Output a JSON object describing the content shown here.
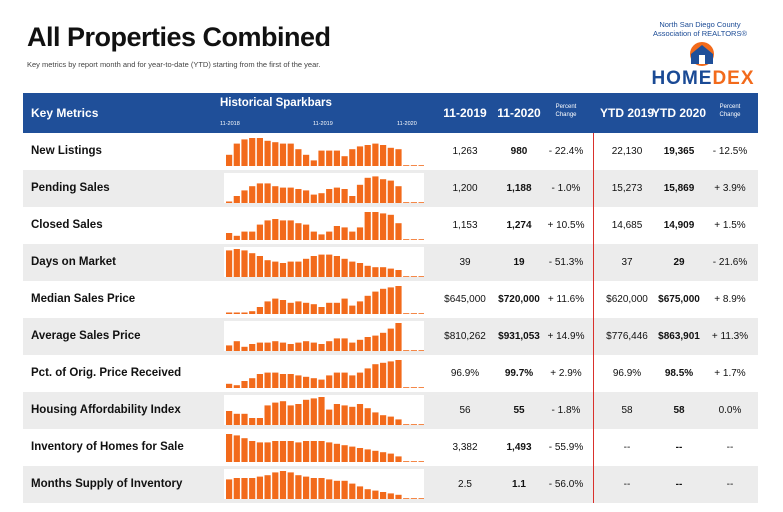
{
  "title": "All Properties Combined",
  "subtitle": "Key metrics by report month and for year-to-date (YTD) starting from the first of the year.",
  "logo": {
    "line1": "North San Diego County",
    "line2": "Association of REALTORS®",
    "word_a": "HOME",
    "word_b": "DEX"
  },
  "colors": {
    "header": "#1f4f99",
    "bar": "#f26a1b",
    "divider": "#d9302c",
    "shade": "#ececec"
  },
  "header": {
    "key_metrics": "Key Metrics",
    "sparkbars": "Historical Sparkbars",
    "tick_labels": [
      "11-2018",
      "11-2019",
      "11-2020"
    ],
    "col_2019": "11-2019",
    "col_2020": "11-2020",
    "pct_change_1": "Percent",
    "pct_change_2": "Change",
    "ytd_2019": "YTD 2019",
    "ytd_2020": "YTD 2020",
    "pct_change_b1": "Percent",
    "pct_change_b2": "Change"
  },
  "rows": [
    {
      "metric": "New Listings",
      "v2019": "1,263",
      "v2020": "980",
      "pct": "- 22.4%",
      "ytd2019": "22,130",
      "ytd2020": "19,365",
      "ytdpct": "- 12.5%",
      "spark": [
        0.4,
        0.8,
        0.95,
        1.0,
        1.0,
        0.9,
        0.85,
        0.8,
        0.8,
        0.6,
        0.4,
        0.2,
        0.55,
        0.55,
        0.55,
        0.35,
        0.6,
        0.7,
        0.75,
        0.8,
        0.75,
        0.65,
        0.6,
        0.0,
        0.0,
        0.0
      ]
    },
    {
      "metric": "Pending Sales",
      "v2019": "1,200",
      "v2020": "1,188",
      "pct": "- 1.0%",
      "ytd2019": "15,273",
      "ytd2020": "15,869",
      "ytdpct": "+ 3.9%",
      "spark": [
        0.05,
        0.25,
        0.45,
        0.6,
        0.7,
        0.7,
        0.6,
        0.55,
        0.55,
        0.5,
        0.45,
        0.3,
        0.35,
        0.5,
        0.55,
        0.5,
        0.25,
        0.65,
        0.9,
        0.95,
        0.85,
        0.8,
        0.6,
        0.0,
        0.0,
        0.0
      ]
    },
    {
      "metric": "Closed Sales",
      "v2019": "1,153",
      "v2020": "1,274",
      "pct": "+ 10.5%",
      "ytd2019": "14,685",
      "ytd2020": "14,909",
      "ytdpct": "+ 1.5%",
      "spark": [
        0.25,
        0.15,
        0.3,
        0.3,
        0.55,
        0.7,
        0.75,
        0.7,
        0.7,
        0.6,
        0.55,
        0.3,
        0.2,
        0.3,
        0.5,
        0.45,
        0.3,
        0.45,
        1.0,
        1.0,
        0.95,
        0.9,
        0.6,
        0.0,
        0.0,
        0.0
      ]
    },
    {
      "metric": "Days on Market",
      "v2019": "39",
      "v2020": "19",
      "pct": "- 51.3%",
      "ytd2019": "37",
      "ytd2020": "29",
      "ytdpct": "- 21.6%",
      "spark": [
        0.95,
        1.0,
        0.95,
        0.85,
        0.75,
        0.6,
        0.55,
        0.5,
        0.55,
        0.55,
        0.65,
        0.75,
        0.8,
        0.8,
        0.75,
        0.65,
        0.55,
        0.5,
        0.4,
        0.35,
        0.35,
        0.3,
        0.25,
        0.0,
        0.0,
        0.0
      ]
    },
    {
      "metric": "Median Sales Price",
      "v2019": "$645,000",
      "v2020": "$720,000",
      "pct": "+ 11.6%",
      "ytd2019": "$620,000",
      "ytd2020": "$675,000",
      "ytdpct": "+ 8.9%",
      "spark": [
        0.05,
        0.05,
        0.05,
        0.1,
        0.25,
        0.45,
        0.55,
        0.5,
        0.4,
        0.45,
        0.4,
        0.35,
        0.25,
        0.4,
        0.4,
        0.55,
        0.3,
        0.45,
        0.65,
        0.8,
        0.9,
        0.95,
        1.0,
        0.0,
        0.0,
        0.0
      ]
    },
    {
      "metric": "Average Sales Price",
      "v2019": "$810,262",
      "v2020": "$931,053",
      "pct": "+ 14.9%",
      "ytd2019": "$776,446",
      "ytd2020": "$863,901",
      "ytdpct": "+ 11.3%",
      "spark": [
        0.2,
        0.35,
        0.15,
        0.25,
        0.3,
        0.3,
        0.35,
        0.3,
        0.25,
        0.3,
        0.35,
        0.3,
        0.25,
        0.35,
        0.45,
        0.45,
        0.3,
        0.4,
        0.5,
        0.55,
        0.65,
        0.8,
        1.0,
        0.0,
        0.0,
        0.0
      ]
    },
    {
      "metric": "Pct. of Orig. Price Received",
      "v2019": "96.9%",
      "v2020": "99.7%",
      "pct": "+ 2.9%",
      "ytd2019": "96.9%",
      "ytd2020": "98.5%",
      "ytdpct": "+ 1.7%",
      "spark": [
        0.15,
        0.1,
        0.25,
        0.35,
        0.5,
        0.55,
        0.55,
        0.5,
        0.5,
        0.45,
        0.4,
        0.35,
        0.3,
        0.45,
        0.55,
        0.55,
        0.45,
        0.55,
        0.7,
        0.85,
        0.9,
        0.95,
        1.0,
        0.0,
        0.0,
        0.0
      ]
    },
    {
      "metric": "Housing Affordability Index",
      "v2019": "56",
      "v2020": "55",
      "pct": "- 1.8%",
      "ytd2019": "58",
      "ytd2020": "58",
      "ytdpct": "0.0%",
      "spark": [
        0.5,
        0.4,
        0.4,
        0.25,
        0.25,
        0.7,
        0.8,
        0.85,
        0.7,
        0.75,
        0.9,
        0.95,
        1.0,
        0.55,
        0.75,
        0.7,
        0.65,
        0.75,
        0.6,
        0.45,
        0.35,
        0.3,
        0.2,
        0.0,
        0.0,
        0.0
      ]
    },
    {
      "metric": "Inventory of Homes for Sale",
      "v2019": "3,382",
      "v2020": "1,493",
      "pct": "- 55.9%",
      "ytd2019": "--",
      "ytd2020": "--",
      "ytdpct": "--",
      "spark": [
        1.0,
        0.95,
        0.85,
        0.75,
        0.7,
        0.7,
        0.75,
        0.75,
        0.75,
        0.7,
        0.75,
        0.75,
        0.75,
        0.7,
        0.65,
        0.6,
        0.55,
        0.5,
        0.45,
        0.4,
        0.35,
        0.3,
        0.2,
        0.0,
        0.0,
        0.0
      ]
    },
    {
      "metric": "Months Supply of Inventory",
      "v2019": "2.5",
      "v2020": "1.1",
      "pct": "- 56.0%",
      "ytd2019": "--",
      "ytd2020": "--",
      "ytdpct": "--",
      "spark": [
        0.7,
        0.75,
        0.75,
        0.75,
        0.8,
        0.85,
        0.95,
        1.0,
        0.95,
        0.85,
        0.8,
        0.75,
        0.75,
        0.7,
        0.65,
        0.65,
        0.55,
        0.45,
        0.35,
        0.3,
        0.25,
        0.2,
        0.15,
        0.0,
        0.0,
        0.0
      ]
    }
  ]
}
